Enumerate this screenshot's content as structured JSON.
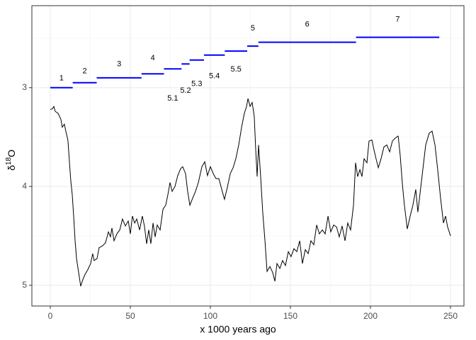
{
  "chart_data": {
    "type": "line",
    "xlabel": "x 1000 years ago",
    "ylabel_symbol": "δ",
    "ylabel_superscript": "18",
    "ylabel_element": "O",
    "xlim": [
      -11.5,
      258.4
    ],
    "ylim": [
      2.17,
      5.21
    ],
    "y_reversed": true,
    "xticks": [
      0,
      50,
      100,
      150,
      200,
      250
    ],
    "yticks": [
      3,
      4,
      5
    ],
    "xminor": [
      25,
      75,
      125,
      175,
      225
    ],
    "yminor": [
      2.5,
      3.5,
      4.5
    ],
    "grid": true,
    "series": [
      {
        "color": "#000000",
        "x": [
          0,
          1.3,
          2.2,
          3.1,
          4.9,
          6.6,
          7.5,
          8.8,
          9.7,
          11,
          12,
          12.8,
          13.7,
          14.6,
          15.5,
          16.4,
          17.7,
          19,
          20.4,
          21.7,
          23.5,
          25.2,
          26.5,
          27.4,
          29.2,
          30.5,
          32.7,
          34.5,
          36.3,
          37.6,
          38.5,
          39.8,
          41.6,
          43.4,
          45.1,
          46.9,
          48.7,
          50,
          51.3,
          52.7,
          54,
          55.8,
          57.5,
          58.8,
          60.2,
          61.5,
          62.8,
          64.2,
          65.5,
          66.8,
          68.6,
          70.4,
          72.1,
          73.5,
          74.8,
          76.1,
          77.9,
          79.6,
          81.4,
          82.7,
          84.5,
          85.8,
          87.2,
          88.9,
          90.7,
          92.5,
          94.7,
          96.5,
          98.2,
          100,
          101.8,
          103.5,
          105.3,
          107.1,
          108.8,
          110.6,
          112.4,
          114.2,
          115.9,
          117.7,
          119.5,
          121.2,
          122.6,
          123.5,
          124.8,
          126.1,
          127.4,
          128.3,
          129.2,
          130.1,
          131.4,
          132.7,
          134.1,
          135.4,
          137.2,
          138.9,
          140.3,
          141.6,
          143.4,
          145.1,
          146.9,
          148.7,
          150.4,
          152.2,
          154,
          155.8,
          157.5,
          159.3,
          161.1,
          162.8,
          164.6,
          166.4,
          168.1,
          169.9,
          171.7,
          173.5,
          175.2,
          177,
          178.8,
          180.5,
          182.3,
          184.1,
          185.8,
          187.6,
          189.4,
          190.7,
          192,
          193.4,
          194.7,
          196,
          197.8,
          199.1,
          200.9,
          202.2,
          203.5,
          204.9,
          206.6,
          208.4,
          210.2,
          212,
          213.7,
          215.5,
          217.3,
          218.6,
          219.9,
          221.2,
          223,
          224.8,
          226.5,
          228.3,
          229.6,
          230.9,
          232.7,
          234.5,
          236.7,
          238.5,
          240.3,
          242,
          243.8,
          245.6,
          246.9,
          248.2,
          250
        ],
        "values": [
          3.22,
          3.215,
          3.19,
          3.24,
          3.26,
          3.32,
          3.4,
          3.37,
          3.44,
          3.53,
          3.76,
          3.94,
          4.08,
          4.3,
          4.55,
          4.73,
          4.87,
          5.01,
          4.94,
          4.89,
          4.84,
          4.78,
          4.68,
          4.75,
          4.73,
          4.62,
          4.6,
          4.57,
          4.46,
          4.51,
          4.42,
          4.55,
          4.48,
          4.44,
          4.33,
          4.4,
          4.35,
          4.48,
          4.3,
          4.37,
          4.33,
          4.44,
          4.3,
          4.4,
          4.58,
          4.44,
          4.58,
          4.37,
          4.51,
          4.39,
          4.44,
          4.23,
          4.19,
          4.08,
          3.96,
          4.05,
          4.0,
          3.89,
          3.82,
          3.8,
          3.87,
          4.05,
          4.19,
          4.12,
          4.05,
          3.96,
          3.8,
          3.75,
          3.89,
          3.8,
          3.87,
          3.92,
          3.92,
          4.03,
          4.13,
          4.01,
          3.87,
          3.81,
          3.72,
          3.58,
          3.4,
          3.26,
          3.19,
          3.11,
          3.19,
          3.15,
          3.29,
          3.62,
          3.9,
          3.58,
          3.9,
          4.26,
          4.55,
          4.86,
          4.81,
          4.87,
          4.96,
          4.78,
          4.83,
          4.75,
          4.8,
          4.66,
          4.71,
          4.63,
          4.66,
          4.55,
          4.78,
          4.64,
          4.68,
          4.55,
          4.59,
          4.39,
          4.48,
          4.44,
          4.48,
          4.3,
          4.46,
          4.39,
          4.41,
          4.51,
          4.4,
          4.55,
          4.37,
          4.44,
          4.19,
          3.76,
          3.9,
          3.83,
          3.9,
          3.72,
          3.76,
          3.54,
          3.53,
          3.63,
          3.72,
          3.81,
          3.72,
          3.6,
          3.58,
          3.65,
          3.54,
          3.51,
          3.49,
          3.69,
          3.97,
          4.19,
          4.43,
          4.3,
          4.19,
          4.03,
          4.26,
          4.08,
          3.83,
          3.58,
          3.46,
          3.44,
          3.58,
          3.83,
          4.12,
          4.37,
          4.3,
          4.41,
          4.5
        ]
      }
    ],
    "stage_color": "#0000ff",
    "stages": [
      {
        "label": "1",
        "start": 0,
        "end": 14,
        "value": 3.0
      },
      {
        "label": "2",
        "start": 14,
        "end": 29,
        "value": 2.95
      },
      {
        "label": "3",
        "start": 29,
        "end": 57,
        "value": 2.9
      },
      {
        "label": "4",
        "start": 57,
        "end": 71,
        "value": 2.86
      },
      {
        "label": "5.1",
        "start": 71,
        "end": 82,
        "value": 2.81
      },
      {
        "label": "5.2",
        "start": 82,
        "end": 87,
        "value": 2.76
      },
      {
        "label": "5.3",
        "start": 87,
        "end": 96,
        "value": 2.72
      },
      {
        "label": "5.4",
        "start": 96,
        "end": 109,
        "value": 2.67
      },
      {
        "label": "5.5",
        "start": 109,
        "end": 123,
        "value": 2.63
      },
      {
        "label": "5",
        "start": 123,
        "end": 130,
        "value": 2.58
      },
      {
        "label": "6",
        "start": 130,
        "end": 191,
        "value": 2.54
      },
      {
        "label": "7",
        "start": 191,
        "end": 243,
        "value": 2.49
      }
    ]
  }
}
